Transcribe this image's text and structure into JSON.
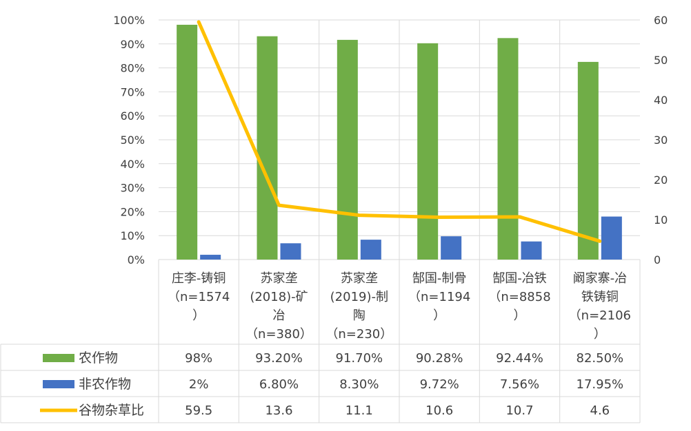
{
  "chart_data": {
    "type": "bar",
    "categories": [
      [
        "庄李-铸铜",
        "（n=1574",
        "）"
      ],
      [
        "苏家垄",
        "(2018)-矿",
        "冶",
        "（n=380）"
      ],
      [
        "苏家垄",
        "(2019)-制",
        "陶",
        "（n=230）"
      ],
      [
        "郜国-制骨",
        "（n=1194",
        "）"
      ],
      [
        "郜国-冶铁",
        "（n=8858",
        "）"
      ],
      [
        "阚家寨-冶",
        "铁铸铜",
        "（n=2106",
        "）"
      ]
    ],
    "y_left": {
      "ticks": [
        "0%",
        "10%",
        "20%",
        "30%",
        "40%",
        "50%",
        "60%",
        "70%",
        "80%",
        "90%",
        "100%"
      ],
      "min": 0,
      "max": 100
    },
    "y_right": {
      "ticks": [
        "0",
        "10",
        "20",
        "30",
        "40",
        "50",
        "60"
      ],
      "min": 0,
      "max": 60
    },
    "series": [
      {
        "name": "农作物",
        "kind": "bar",
        "axis": "left",
        "color": "#70ad47",
        "values": [
          98,
          93.2,
          91.7,
          90.28,
          92.44,
          82.5
        ],
        "labels": [
          "98%",
          "93.20%",
          "91.70%",
          "90.28%",
          "92.44%",
          "82.50%"
        ]
      },
      {
        "name": "非农作物",
        "kind": "bar",
        "axis": "left",
        "color": "#4472c4",
        "values": [
          2,
          6.8,
          8.3,
          9.72,
          7.56,
          17.95
        ],
        "labels": [
          "2%",
          "6.80%",
          "8.30%",
          "9.72%",
          "7.56%",
          "17.95%"
        ]
      },
      {
        "name": "谷物杂草比",
        "kind": "line",
        "axis": "right",
        "color": "#ffc000",
        "values": [
          59.5,
          13.6,
          11.1,
          10.6,
          10.7,
          4.6
        ],
        "labels": [
          "59.5",
          "13.6",
          "11.1",
          "10.6",
          "10.7",
          "4.6"
        ]
      }
    ],
    "grid": true,
    "legend": "data-table"
  }
}
